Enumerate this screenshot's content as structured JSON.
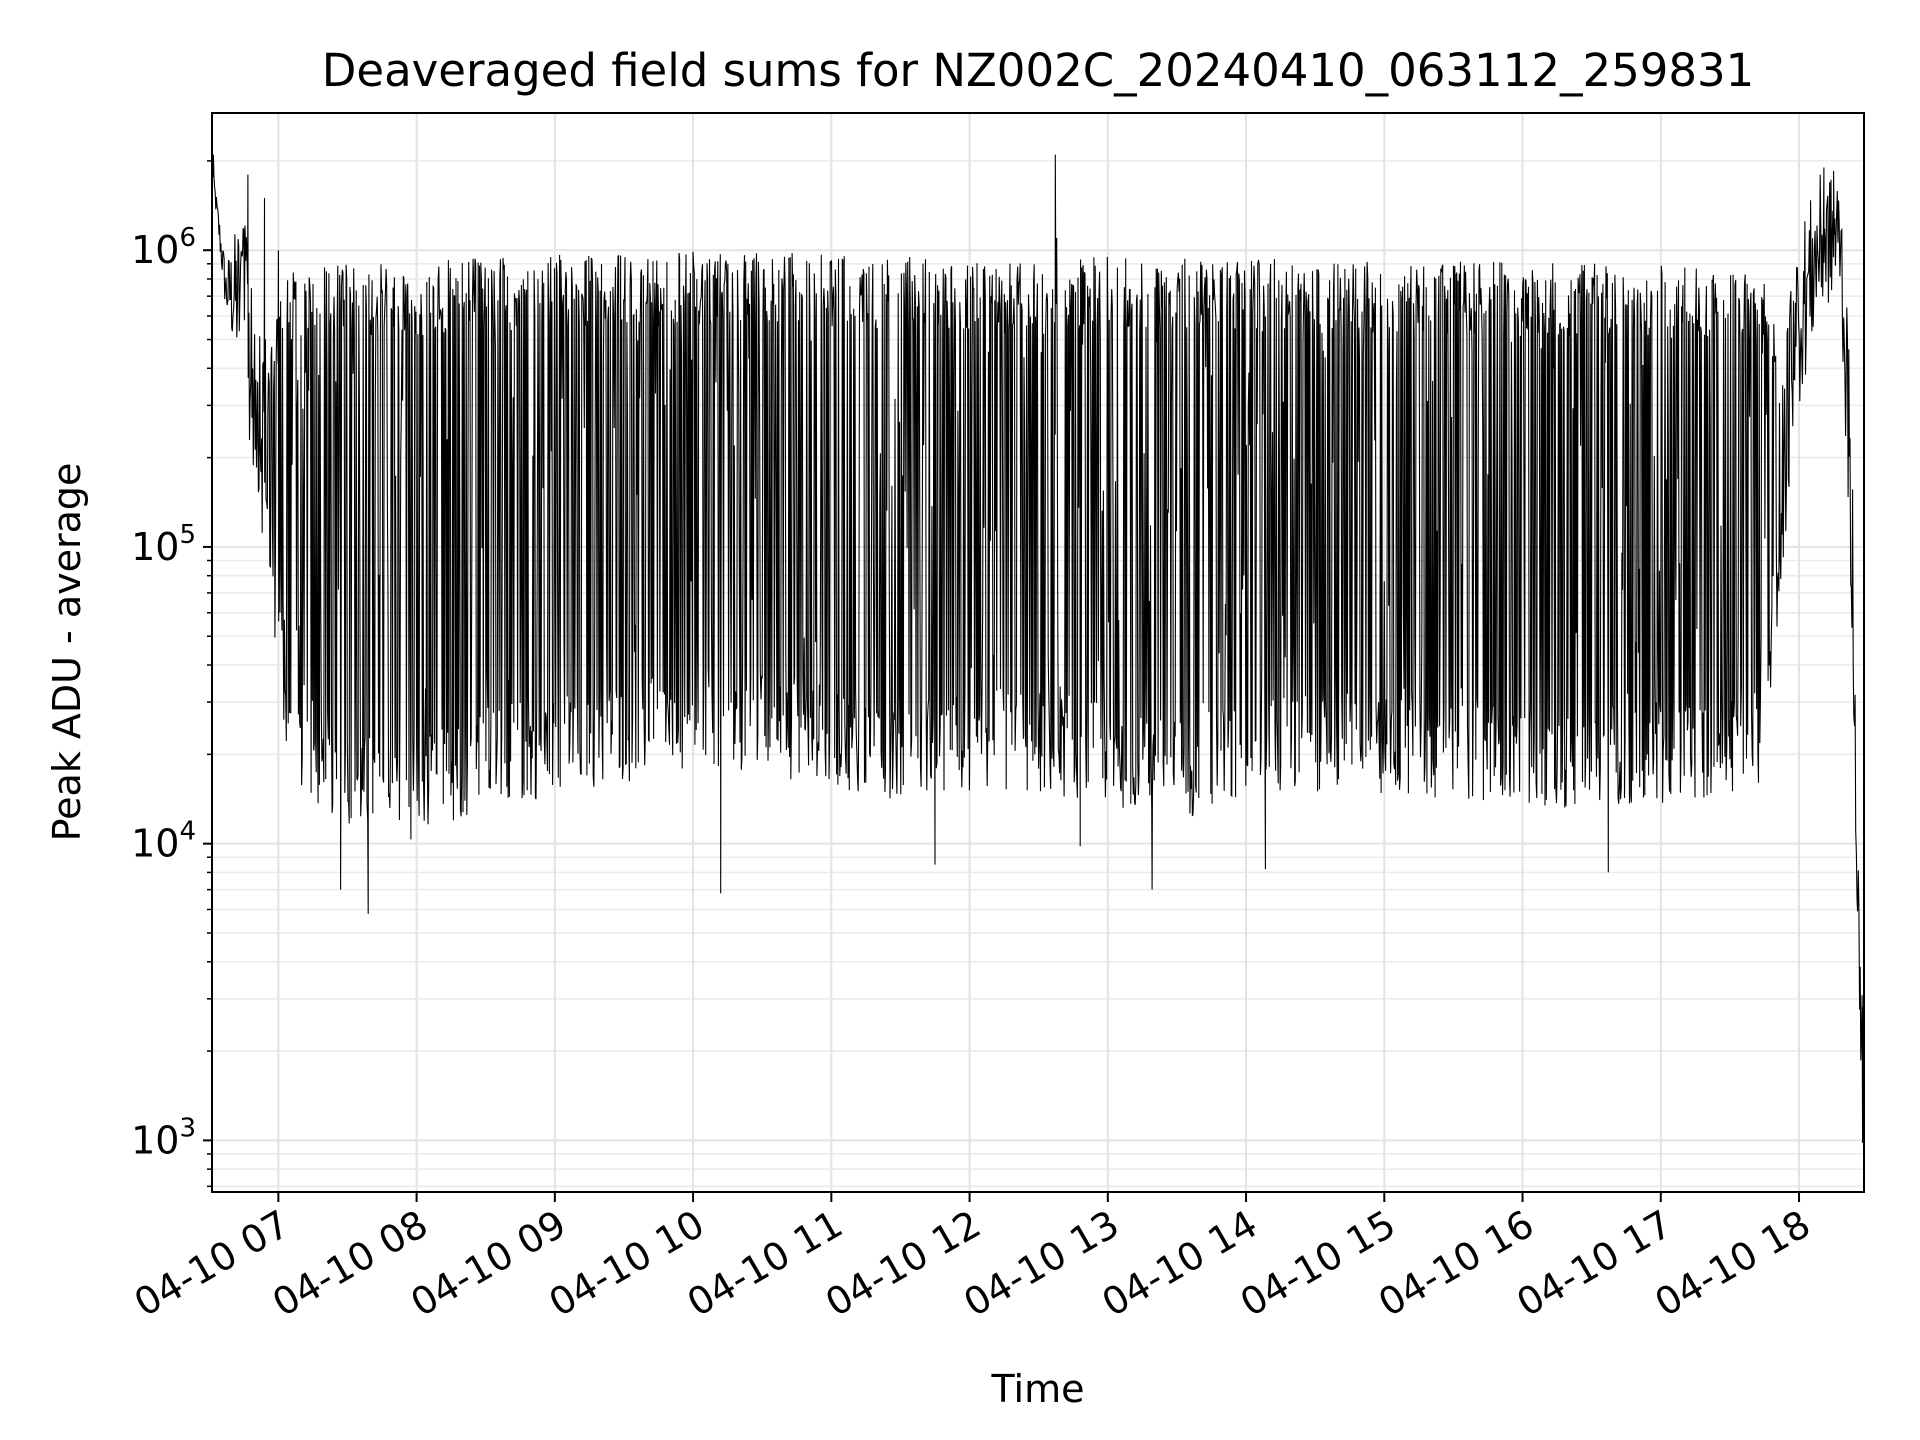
{
  "chart_data": {
    "type": "line",
    "title": "Deaveraged field sums for NZ002C_20240410_063112_259831",
    "xlabel": "Time",
    "ylabel": "Peak ADU - average",
    "y_scale": "log",
    "x_unit": "hours since 04-10 00:00 (axis shows date-hour)",
    "xlim": [
      6.52,
      18.47
    ],
    "ylim": [
      670,
      2900000
    ],
    "grid": "on (major and minor, light gray)",
    "legend": "none",
    "line_color": "#000000",
    "x_ticks": [
      {
        "value": 7,
        "label": "04-10 07"
      },
      {
        "value": 8,
        "label": "04-10 08"
      },
      {
        "value": 9,
        "label": "04-10 09"
      },
      {
        "value": 10,
        "label": "04-10 10"
      },
      {
        "value": 11,
        "label": "04-10 11"
      },
      {
        "value": 12,
        "label": "04-10 12"
      },
      {
        "value": 13,
        "label": "04-10 13"
      },
      {
        "value": 14,
        "label": "04-10 14"
      },
      {
        "value": 15,
        "label": "04-10 15"
      },
      {
        "value": 16,
        "label": "04-10 16"
      },
      {
        "value": 17,
        "label": "04-10 17"
      },
      {
        "value": 18,
        "label": "04-10 18"
      }
    ],
    "y_ticks": [
      {
        "value": 1000,
        "base": "10",
        "exp": "3"
      },
      {
        "value": 10000,
        "base": "10",
        "exp": "4"
      },
      {
        "value": 100000,
        "base": "10",
        "exp": "5"
      },
      {
        "value": 1000000,
        "base": "10",
        "exp": "6"
      }
    ],
    "series": [
      {
        "name": "",
        "envelope_anchors": [
          {
            "t": 6.52,
            "high": 2000000,
            "low": 1800000
          },
          {
            "t": 6.62,
            "high": 900000,
            "low": 600000
          },
          {
            "t": 6.75,
            "high": 1500000,
            "low": 300000
          },
          {
            "t": 6.85,
            "high": 700000,
            "low": 150000
          },
          {
            "t": 6.95,
            "high": 500000,
            "low": 60000
          },
          {
            "t": 7.05,
            "high": 850000,
            "low": 18000
          },
          {
            "t": 7.3,
            "high": 900000,
            "low": 13000
          },
          {
            "t": 7.6,
            "high": 900000,
            "low": 11000
          },
          {
            "t": 7.9,
            "high": 900000,
            "low": 10000
          },
          {
            "t": 8.5,
            "high": 950000,
            "low": 13000
          },
          {
            "t": 9.5,
            "high": 980000,
            "low": 16000
          },
          {
            "t": 10.5,
            "high": 1000000,
            "low": 17000
          },
          {
            "t": 11.5,
            "high": 950000,
            "low": 14000
          },
          {
            "t": 12.3,
            "high": 950000,
            "low": 15000
          },
          {
            "t": 12.8,
            "high": 950000,
            "low": 14000
          },
          {
            "t": 13.5,
            "high": 950000,
            "low": 12000
          },
          {
            "t": 14.5,
            "high": 930000,
            "low": 15000
          },
          {
            "t": 15.5,
            "high": 920000,
            "low": 14000
          },
          {
            "t": 16.5,
            "high": 900000,
            "low": 13000
          },
          {
            "t": 17.3,
            "high": 900000,
            "low": 14000
          },
          {
            "t": 17.75,
            "high": 850000,
            "low": 16000
          },
          {
            "t": 17.85,
            "high": 500000,
            "low": 60000
          },
          {
            "t": 18.0,
            "high": 1200000,
            "low": 300000
          },
          {
            "t": 18.15,
            "high": 1800000,
            "low": 600000
          },
          {
            "t": 18.3,
            "high": 1800000,
            "low": 700000
          },
          {
            "t": 18.38,
            "high": 300000,
            "low": 60000
          },
          {
            "t": 18.44,
            "high": 5000,
            "low": 1700
          },
          {
            "t": 18.47,
            "high": 3500,
            "low": 1000
          }
        ],
        "notable_points": [
          {
            "t": 6.53,
            "y": 2100000
          },
          {
            "t": 6.78,
            "y": 1800000
          },
          {
            "t": 6.9,
            "y": 1500000
          },
          {
            "t": 7.0,
            "y": 1000000
          },
          {
            "t": 7.45,
            "y": 7000
          },
          {
            "t": 7.65,
            "y": 5800
          },
          {
            "t": 10.2,
            "y": 6800
          },
          {
            "t": 11.75,
            "y": 8500
          },
          {
            "t": 12.62,
            "y": 2100000
          },
          {
            "t": 12.63,
            "y": 1100000
          },
          {
            "t": 12.8,
            "y": 9800
          },
          {
            "t": 13.32,
            "y": 7000
          },
          {
            "t": 14.14,
            "y": 8200
          },
          {
            "t": 16.62,
            "y": 8000
          },
          {
            "t": 18.18,
            "y": 1900000
          },
          {
            "t": 18.25,
            "y": 1850000
          },
          {
            "t": 18.46,
            "y": 980
          }
        ]
      }
    ]
  }
}
